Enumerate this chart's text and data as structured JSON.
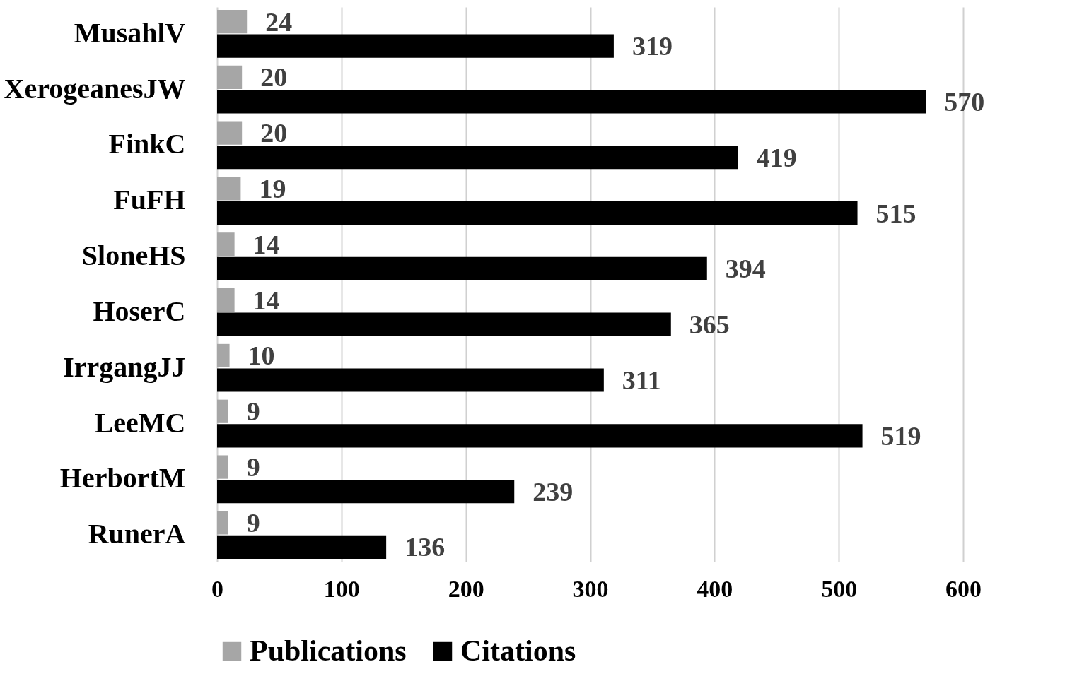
{
  "chart_data": {
    "type": "bar",
    "orientation": "horizontal",
    "categories": [
      "MusahlV",
      "XerogeanesJW",
      "FinkC",
      "FuFH",
      "SloneHS",
      "HoserC",
      "IrrgangJJ",
      "LeeMC",
      "HerbortM",
      "RunerA"
    ],
    "series": [
      {
        "name": "Publications",
        "color": "#a6a6a6",
        "values": [
          24,
          20,
          20,
          19,
          14,
          14,
          10,
          9,
          9,
          9
        ]
      },
      {
        "name": "Citations",
        "color": "#000000",
        "values": [
          319,
          570,
          419,
          515,
          394,
          365,
          311,
          519,
          239,
          136
        ]
      }
    ],
    "xlim": [
      0,
      600
    ],
    "xticks": [
      0,
      100,
      200,
      300,
      400,
      500,
      600
    ],
    "grid": "x",
    "legend": "bottom",
    "data_labels": true
  }
}
